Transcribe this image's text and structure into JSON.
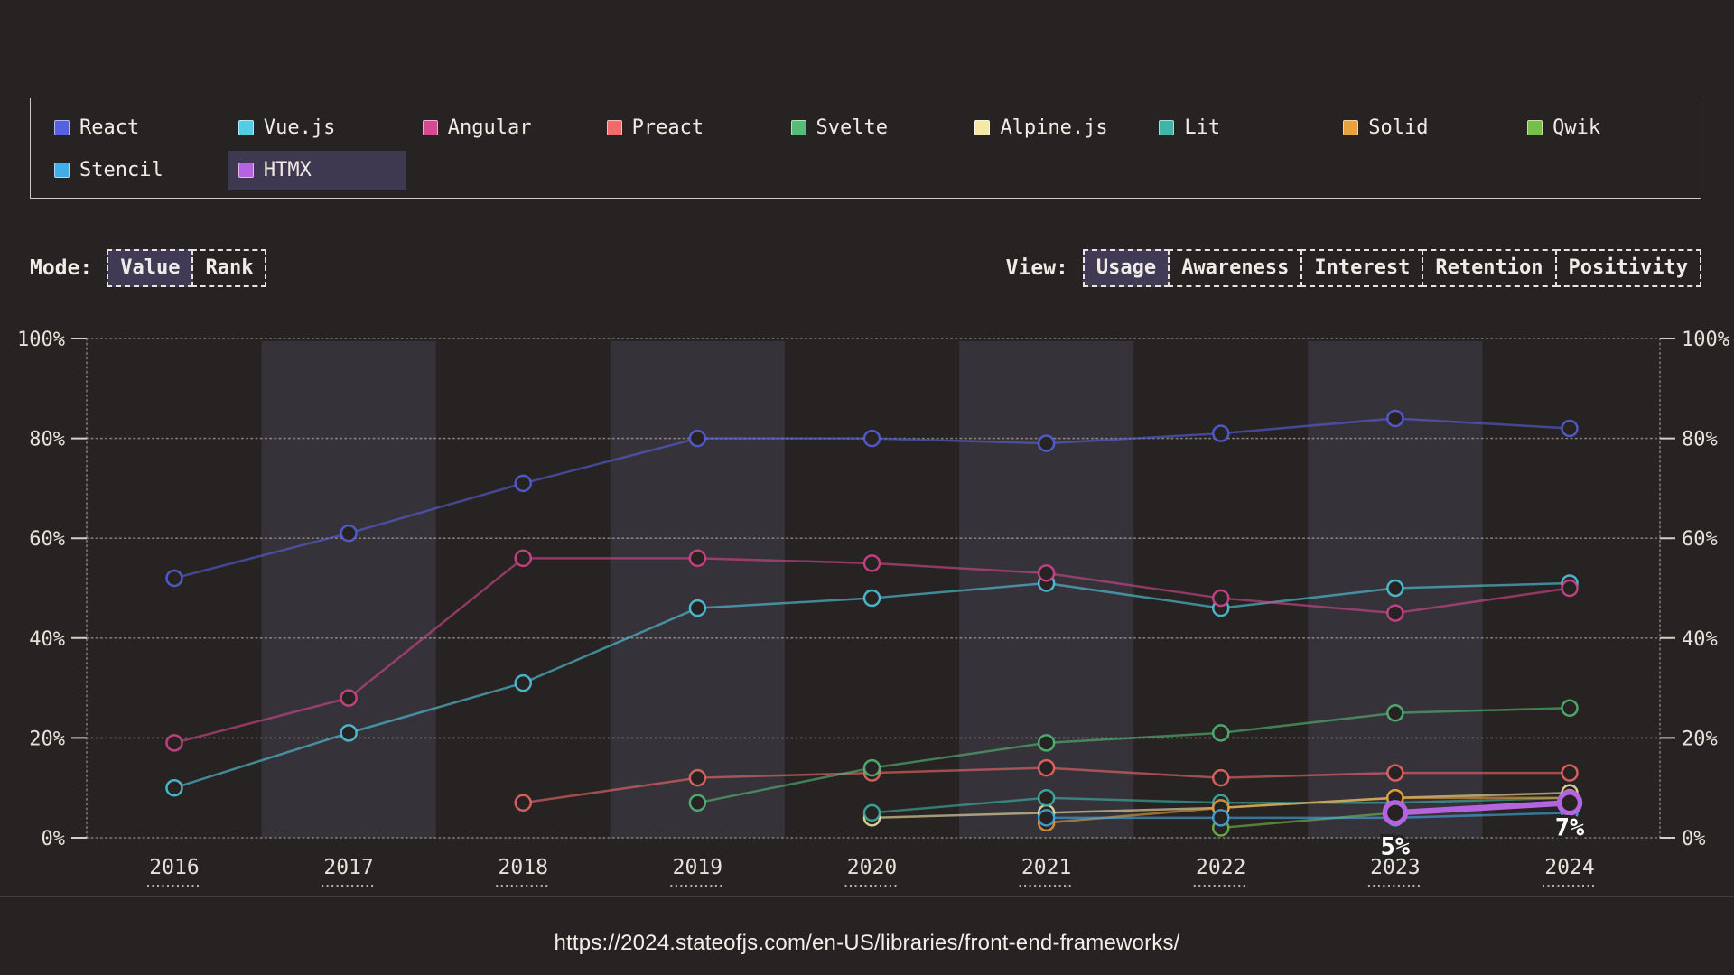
{
  "page": {
    "background": "#272322",
    "band_color": "rgba(148,140,205,0.14)"
  },
  "legend": {
    "items": [
      {
        "label": "React",
        "color": "#5661e0",
        "highlighted": false
      },
      {
        "label": "Vue.js",
        "color": "#53cde4",
        "highlighted": false
      },
      {
        "label": "Angular",
        "color": "#d6488f",
        "highlighted": false
      },
      {
        "label": "Preact",
        "color": "#f26a6a",
        "highlighted": false
      },
      {
        "label": "Svelte",
        "color": "#55bd78",
        "highlighted": false
      },
      {
        "label": "Alpine.js",
        "color": "#f5e9a8",
        "highlighted": false
      },
      {
        "label": "Lit",
        "color": "#3fb5a8",
        "highlighted": false
      },
      {
        "label": "Solid",
        "color": "#e8a23c",
        "highlighted": false
      },
      {
        "label": "Qwik",
        "color": "#78be4b",
        "highlighted": false
      },
      {
        "label": "Stencil",
        "color": "#42aee8",
        "highlighted": false
      },
      {
        "label": "HTMX",
        "color": "#b564e0",
        "highlighted": true
      }
    ]
  },
  "controls": {
    "mode_label": "Mode:",
    "mode_options": [
      {
        "label": "Value",
        "selected": true
      },
      {
        "label": "Rank",
        "selected": false
      }
    ],
    "view_label": "View:",
    "view_options": [
      {
        "label": "Usage",
        "selected": true
      },
      {
        "label": "Awareness",
        "selected": false
      },
      {
        "label": "Interest",
        "selected": false
      },
      {
        "label": "Retention",
        "selected": false
      },
      {
        "label": "Positivity",
        "selected": false
      }
    ]
  },
  "chart_data": {
    "type": "line",
    "x": [
      2016,
      2017,
      2018,
      2019,
      2020,
      2021,
      2022,
      2023,
      2024
    ],
    "ylim": [
      0,
      100
    ],
    "y_tick_values": [
      0,
      20,
      40,
      60,
      80,
      100
    ],
    "y_tick_labels": [
      "0%",
      "20%",
      "40%",
      "60%",
      "80%",
      "100%"
    ],
    "grid": "horizontal-dotted, y axis labels on both sides",
    "banded_years": [
      2017,
      2019,
      2021,
      2023
    ],
    "legend_position": "top",
    "series": [
      {
        "name": "React",
        "color": "#5661e0",
        "values": [
          52,
          61,
          71,
          80,
          80,
          79,
          81,
          84,
          82
        ]
      },
      {
        "name": "Vue.js",
        "color": "#53cde4",
        "values": [
          10,
          21,
          31,
          46,
          48,
          51,
          46,
          50,
          51
        ]
      },
      {
        "name": "Angular",
        "color": "#d6488f",
        "values": [
          19,
          28,
          56,
          56,
          55,
          53,
          48,
          45,
          50
        ]
      },
      {
        "name": "Preact",
        "color": "#f26a6a",
        "values": [
          null,
          null,
          7,
          12,
          13,
          14,
          12,
          13,
          13
        ]
      },
      {
        "name": "Svelte",
        "color": "#55bd78",
        "values": [
          null,
          null,
          null,
          7,
          14,
          19,
          21,
          25,
          26
        ]
      },
      {
        "name": "Alpine.js",
        "color": "#f5e9a8",
        "values": [
          null,
          null,
          null,
          null,
          4,
          5,
          6,
          8,
          9
        ]
      },
      {
        "name": "Lit",
        "color": "#3fb5a8",
        "values": [
          null,
          null,
          null,
          null,
          5,
          8,
          7,
          7,
          8
        ]
      },
      {
        "name": "Solid",
        "color": "#e8a23c",
        "values": [
          null,
          null,
          null,
          null,
          null,
          3,
          6,
          8,
          8
        ]
      },
      {
        "name": "Qwik",
        "color": "#78be4b",
        "values": [
          null,
          null,
          null,
          null,
          null,
          null,
          2,
          5,
          7
        ]
      },
      {
        "name": "Stencil",
        "color": "#42aee8",
        "values": [
          null,
          null,
          null,
          null,
          null,
          4,
          4,
          4,
          5
        ]
      },
      {
        "name": "HTMX",
        "color": "#b564e0",
        "values": [
          null,
          null,
          null,
          null,
          null,
          null,
          null,
          5,
          7
        ],
        "highlighted": true
      }
    ],
    "annotations": [
      {
        "text": "5%",
        "year": 2023,
        "value": 5
      },
      {
        "text": "7%",
        "year": 2024,
        "value": 7
      }
    ]
  },
  "footer": {
    "url": "https://2024.stateofjs.com/en-US/libraries/front-end-frameworks/"
  }
}
